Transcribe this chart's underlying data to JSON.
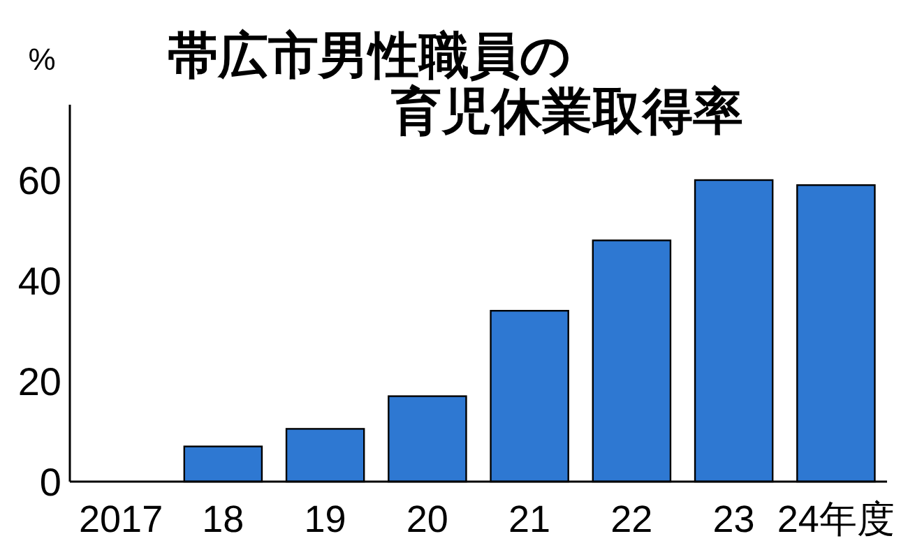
{
  "chart_data": {
    "type": "bar",
    "title": "帯広市男性職員の育児休業取得率",
    "ylabel": "%",
    "categories": [
      "2017",
      "18",
      "19",
      "20",
      "21",
      "22",
      "23",
      "24年度"
    ],
    "values": [
      0,
      7,
      10.5,
      17,
      34,
      48,
      60,
      59
    ],
    "color": "#2e78d2",
    "ylim": [
      0,
      75
    ],
    "yticks": [
      0,
      20,
      40,
      60
    ],
    "grid": false
  }
}
